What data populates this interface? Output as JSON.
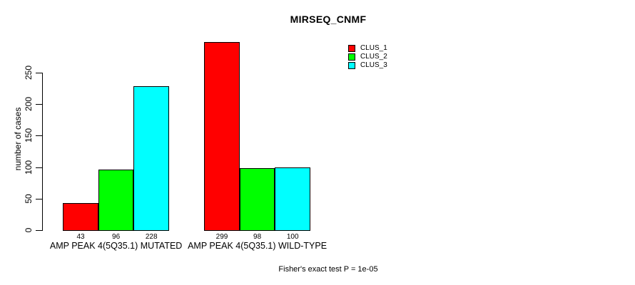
{
  "title": "MIRSEQ_CNMF",
  "footer": "Fisher's exact test P = 1e-05",
  "chart_data": {
    "type": "bar",
    "title": "MIRSEQ_CNMF",
    "xlabel": "",
    "ylabel": "number of cases",
    "ylim": [
      0,
      250
    ],
    "yticks": [
      0,
      50,
      100,
      150,
      200,
      250
    ],
    "grid": false,
    "legend_position": "top-right",
    "bar_value_labels_shown": true,
    "categories": [
      "AMP PEAK 4(5Q35.1) MUTATED",
      "AMP PEAK 4(5Q35.1) WILD-TYPE"
    ],
    "series": [
      {
        "name": "CLUS_1",
        "color": "#ff0000",
        "values": [
          43,
          299
        ]
      },
      {
        "name": "CLUS_2",
        "color": "#00ff00",
        "values": [
          96,
          98
        ]
      },
      {
        "name": "CLUS_3",
        "color": "#00ffff",
        "values": [
          228,
          100
        ]
      }
    ],
    "annotation": "Fisher's exact test P = 1e-05"
  },
  "colors": {
    "background": "#ffffff",
    "axis": "#000000",
    "bar_border": "#000000",
    "text": "#000000"
  }
}
